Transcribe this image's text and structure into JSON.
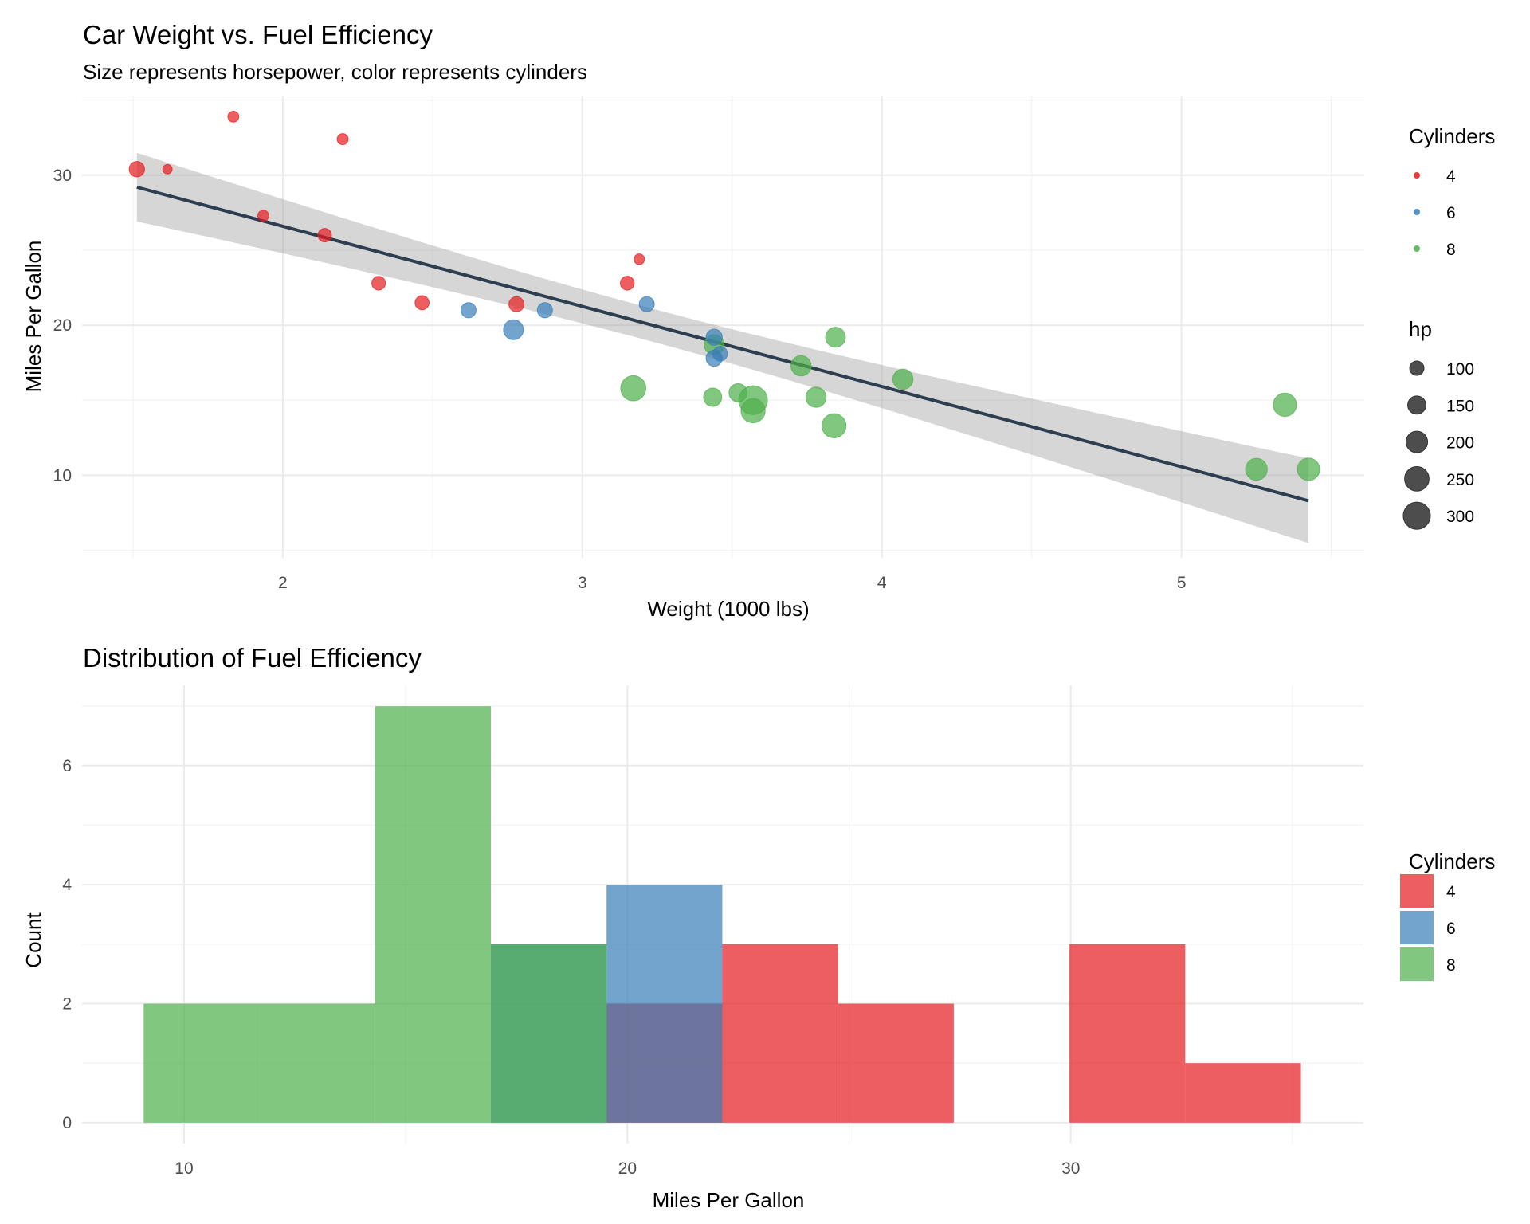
{
  "chart_data": [
    {
      "type": "scatter",
      "title": "Car Weight vs. Fuel Efficiency",
      "subtitle": "Size represents horsepower, color represents cylinders",
      "xlabel": "Weight (1000 lbs)",
      "ylabel": "Miles Per Gallon",
      "xlim": [
        1.33,
        5.61
      ],
      "ylim": [
        4.5,
        35.3
      ],
      "xticks": [
        2,
        3,
        4,
        5
      ],
      "yticks": [
        10,
        20,
        30
      ],
      "grid": true,
      "legend_position": "right",
      "color_legend": {
        "title": "Cylinders",
        "items": [
          {
            "label": "4",
            "color": "#E41A1C"
          },
          {
            "label": "6",
            "color": "#377EB8"
          },
          {
            "label": "8",
            "color": "#4DAF4A"
          }
        ]
      },
      "size_legend": {
        "title": "hp",
        "items": [
          "100",
          "150",
          "200",
          "250",
          "300"
        ]
      },
      "trend": {
        "method": "lm",
        "color": "#2C3E50",
        "ci_color": "#999999",
        "x_range": [
          1.513,
          5.424
        ],
        "y_at_range": [
          29.2,
          8.3
        ],
        "ci_lower_at_range": [
          27.0,
          5.0
        ],
        "ci_upper_at_range": [
          31.3,
          11.0
        ]
      },
      "points": [
        {
          "wt": 2.62,
          "mpg": 21.0,
          "cyl": 6,
          "hp": 110
        },
        {
          "wt": 2.875,
          "mpg": 21.0,
          "cyl": 6,
          "hp": 110
        },
        {
          "wt": 2.32,
          "mpg": 22.8,
          "cyl": 4,
          "hp": 93
        },
        {
          "wt": 3.215,
          "mpg": 21.4,
          "cyl": 6,
          "hp": 110
        },
        {
          "wt": 3.44,
          "mpg": 18.7,
          "cyl": 8,
          "hp": 175
        },
        {
          "wt": 3.46,
          "mpg": 18.1,
          "cyl": 6,
          "hp": 105
        },
        {
          "wt": 3.57,
          "mpg": 14.3,
          "cyl": 8,
          "hp": 245
        },
        {
          "wt": 3.19,
          "mpg": 24.4,
          "cyl": 4,
          "hp": 62
        },
        {
          "wt": 3.15,
          "mpg": 22.8,
          "cyl": 4,
          "hp": 95
        },
        {
          "wt": 3.44,
          "mpg": 19.2,
          "cyl": 6,
          "hp": 123
        },
        {
          "wt": 3.44,
          "mpg": 17.8,
          "cyl": 6,
          "hp": 123
        },
        {
          "wt": 4.07,
          "mpg": 16.4,
          "cyl": 8,
          "hp": 180
        },
        {
          "wt": 3.73,
          "mpg": 17.3,
          "cyl": 8,
          "hp": 180
        },
        {
          "wt": 3.78,
          "mpg": 15.2,
          "cyl": 8,
          "hp": 180
        },
        {
          "wt": 5.25,
          "mpg": 10.4,
          "cyl": 8,
          "hp": 205
        },
        {
          "wt": 5.424,
          "mpg": 10.4,
          "cyl": 8,
          "hp": 215
        },
        {
          "wt": 5.345,
          "mpg": 14.7,
          "cyl": 8,
          "hp": 230
        },
        {
          "wt": 2.2,
          "mpg": 32.4,
          "cyl": 4,
          "hp": 66
        },
        {
          "wt": 1.615,
          "mpg": 30.4,
          "cyl": 4,
          "hp": 52
        },
        {
          "wt": 1.835,
          "mpg": 33.9,
          "cyl": 4,
          "hp": 65
        },
        {
          "wt": 2.465,
          "mpg": 21.5,
          "cyl": 4,
          "hp": 97
        },
        {
          "wt": 3.52,
          "mpg": 15.5,
          "cyl": 8,
          "hp": 150
        },
        {
          "wt": 3.435,
          "mpg": 15.2,
          "cyl": 8,
          "hp": 150
        },
        {
          "wt": 3.84,
          "mpg": 13.3,
          "cyl": 8,
          "hp": 245
        },
        {
          "wt": 3.845,
          "mpg": 19.2,
          "cyl": 8,
          "hp": 175
        },
        {
          "wt": 1.935,
          "mpg": 27.3,
          "cyl": 4,
          "hp": 66
        },
        {
          "wt": 2.14,
          "mpg": 26.0,
          "cyl": 4,
          "hp": 91
        },
        {
          "wt": 1.513,
          "mpg": 30.4,
          "cyl": 4,
          "hp": 113
        },
        {
          "wt": 3.17,
          "mpg": 15.8,
          "cyl": 8,
          "hp": 264
        },
        {
          "wt": 2.77,
          "mpg": 19.7,
          "cyl": 6,
          "hp": 175
        },
        {
          "wt": 3.57,
          "mpg": 15.0,
          "cyl": 8,
          "hp": 335
        },
        {
          "wt": 2.78,
          "mpg": 21.4,
          "cyl": 4,
          "hp": 109
        }
      ]
    },
    {
      "type": "bar",
      "subtype": "histogram",
      "title": "Distribution of Fuel Efficiency",
      "xlabel": "Miles Per Gallon",
      "ylabel": "Count",
      "xlim": [
        7.7,
        36.6
      ],
      "ylim": [
        -0.35,
        7.35
      ],
      "xticks": [
        10,
        20,
        30
      ],
      "yticks": [
        0,
        2,
        4,
        6
      ],
      "grid": true,
      "legend_position": "right",
      "position": "identity",
      "bin_edges": [
        9.09,
        11.7,
        14.31,
        16.92,
        19.53,
        22.14,
        24.75,
        27.36,
        29.97,
        32.58,
        35.19
      ],
      "legend": {
        "title": "Cylinders",
        "items": [
          {
            "label": "4",
            "color": "#E41A1C"
          },
          {
            "label": "6",
            "color": "#377EB8"
          },
          {
            "label": "8",
            "color": "#4DAF4A"
          }
        ]
      },
      "series": [
        {
          "name": "4",
          "color": "#E41A1C",
          "values": [
            0,
            0,
            0,
            0,
            2,
            3,
            2,
            0,
            3,
            1
          ]
        },
        {
          "name": "6",
          "color": "#377EB8",
          "values": [
            0,
            0,
            0,
            3,
            4,
            0,
            0,
            0,
            0,
            0
          ]
        },
        {
          "name": "8",
          "color": "#4DAF4A",
          "values": [
            2,
            2,
            7,
            3,
            0,
            0,
            0,
            0,
            0,
            0
          ]
        }
      ]
    }
  ]
}
